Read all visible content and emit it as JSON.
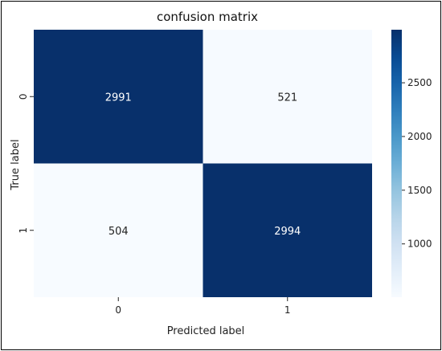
{
  "chart_data": {
    "type": "heatmap",
    "title": "confusion matrix",
    "xlabel": "Predicted label",
    "ylabel": "True label",
    "x_categories": [
      "0",
      "1"
    ],
    "y_categories": [
      "0",
      "1"
    ],
    "values": [
      [
        2991,
        521
      ],
      [
        504,
        2994
      ]
    ],
    "colorbar": {
      "ticks": [
        1000,
        1500,
        2000,
        2500
      ],
      "range": [
        504,
        2994
      ],
      "colormap": "Blues",
      "low_color": "#f7fbff",
      "high_color": "#08306b"
    },
    "grid": false
  }
}
